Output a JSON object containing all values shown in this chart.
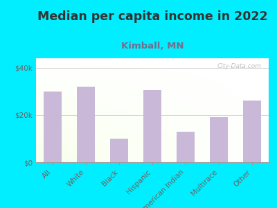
{
  "title": "Median per capita income in 2022",
  "subtitle": "Kimball, MN",
  "categories": [
    "All",
    "White",
    "Black",
    "Hispanic",
    "American Indian",
    "Multirace",
    "Other"
  ],
  "values": [
    30000,
    32000,
    10000,
    30500,
    13000,
    19000,
    26000
  ],
  "bar_color": "#c9b8d8",
  "bg_outer": "#00eeff",
  "title_color": "#333333",
  "subtitle_color": "#7a6a8a",
  "tick_label_color": "#666666",
  "ytick_labels": [
    "$0",
    "$20k",
    "$40k"
  ],
  "ytick_values": [
    0,
    20000,
    40000
  ],
  "ylim": [
    0,
    44000
  ],
  "watermark": "City-Data.com",
  "title_fontsize": 12.5,
  "subtitle_fontsize": 9.5,
  "tick_fontsize": 7.5
}
